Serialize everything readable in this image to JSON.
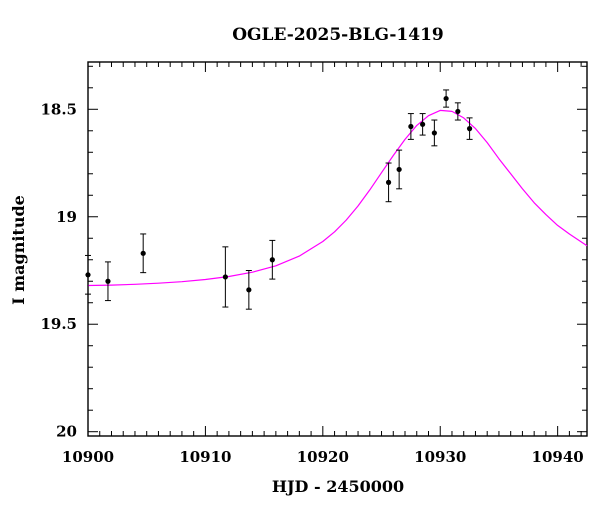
{
  "chart_data": {
    "type": "scatter",
    "title": "OGLE-2025-BLG-1419",
    "xlabel": "HJD - 2450000",
    "ylabel": "I magnitude",
    "xlim": [
      10900,
      10942.5
    ],
    "ylim": [
      20.02,
      18.28
    ],
    "y_inverted": true,
    "grid": false,
    "x_ticks": [
      10900,
      10910,
      10920,
      10930,
      10940
    ],
    "x_tick_labels": [
      "10900",
      "10910",
      "10920",
      "10930",
      "10940"
    ],
    "y_ticks": [
      18.5,
      19,
      19.5,
      20
    ],
    "y_tick_labels": [
      "18.5",
      "19",
      "19.5",
      "20"
    ],
    "series": [
      {
        "type": "scatter",
        "color": "#000000",
        "points": [
          {
            "x": 10900.0,
            "y": 19.27,
            "err": 0.09
          },
          {
            "x": 10901.7,
            "y": 19.3,
            "err": 0.09
          },
          {
            "x": 10904.7,
            "y": 19.17,
            "err": 0.09
          },
          {
            "x": 10911.7,
            "y": 19.28,
            "err": 0.14
          },
          {
            "x": 10913.7,
            "y": 19.34,
            "err": 0.09
          },
          {
            "x": 10915.7,
            "y": 19.2,
            "err": 0.09
          },
          {
            "x": 10925.6,
            "y": 18.84,
            "err": 0.09
          },
          {
            "x": 10926.5,
            "y": 18.78,
            "err": 0.09
          },
          {
            "x": 10927.5,
            "y": 18.58,
            "err": 0.06
          },
          {
            "x": 10928.5,
            "y": 18.57,
            "err": 0.05
          },
          {
            "x": 10929.5,
            "y": 18.61,
            "err": 0.06
          },
          {
            "x": 10930.5,
            "y": 18.45,
            "err": 0.04
          },
          {
            "x": 10931.5,
            "y": 18.51,
            "err": 0.04
          },
          {
            "x": 10932.5,
            "y": 18.59,
            "err": 0.05
          }
        ]
      },
      {
        "type": "line",
        "color": "#ff00ff",
        "x": [
          10900,
          10902,
          10904,
          10906,
          10908,
          10910,
          10912,
          10914,
          10916,
          10918,
          10920,
          10921,
          10922,
          10923,
          10924,
          10925,
          10926,
          10927,
          10928,
          10929,
          10930,
          10931,
          10932,
          10933,
          10934,
          10935,
          10936,
          10937,
          10938,
          10939,
          10940,
          10941,
          10942.5
        ],
        "y": [
          19.32,
          19.318,
          19.314,
          19.309,
          19.302,
          19.292,
          19.278,
          19.258,
          19.228,
          19.183,
          19.115,
          19.07,
          19.015,
          18.95,
          18.875,
          18.795,
          18.715,
          18.64,
          18.575,
          18.53,
          18.505,
          18.51,
          18.54,
          18.59,
          18.655,
          18.73,
          18.8,
          18.87,
          18.935,
          18.99,
          19.04,
          19.08,
          19.135
        ]
      }
    ]
  }
}
